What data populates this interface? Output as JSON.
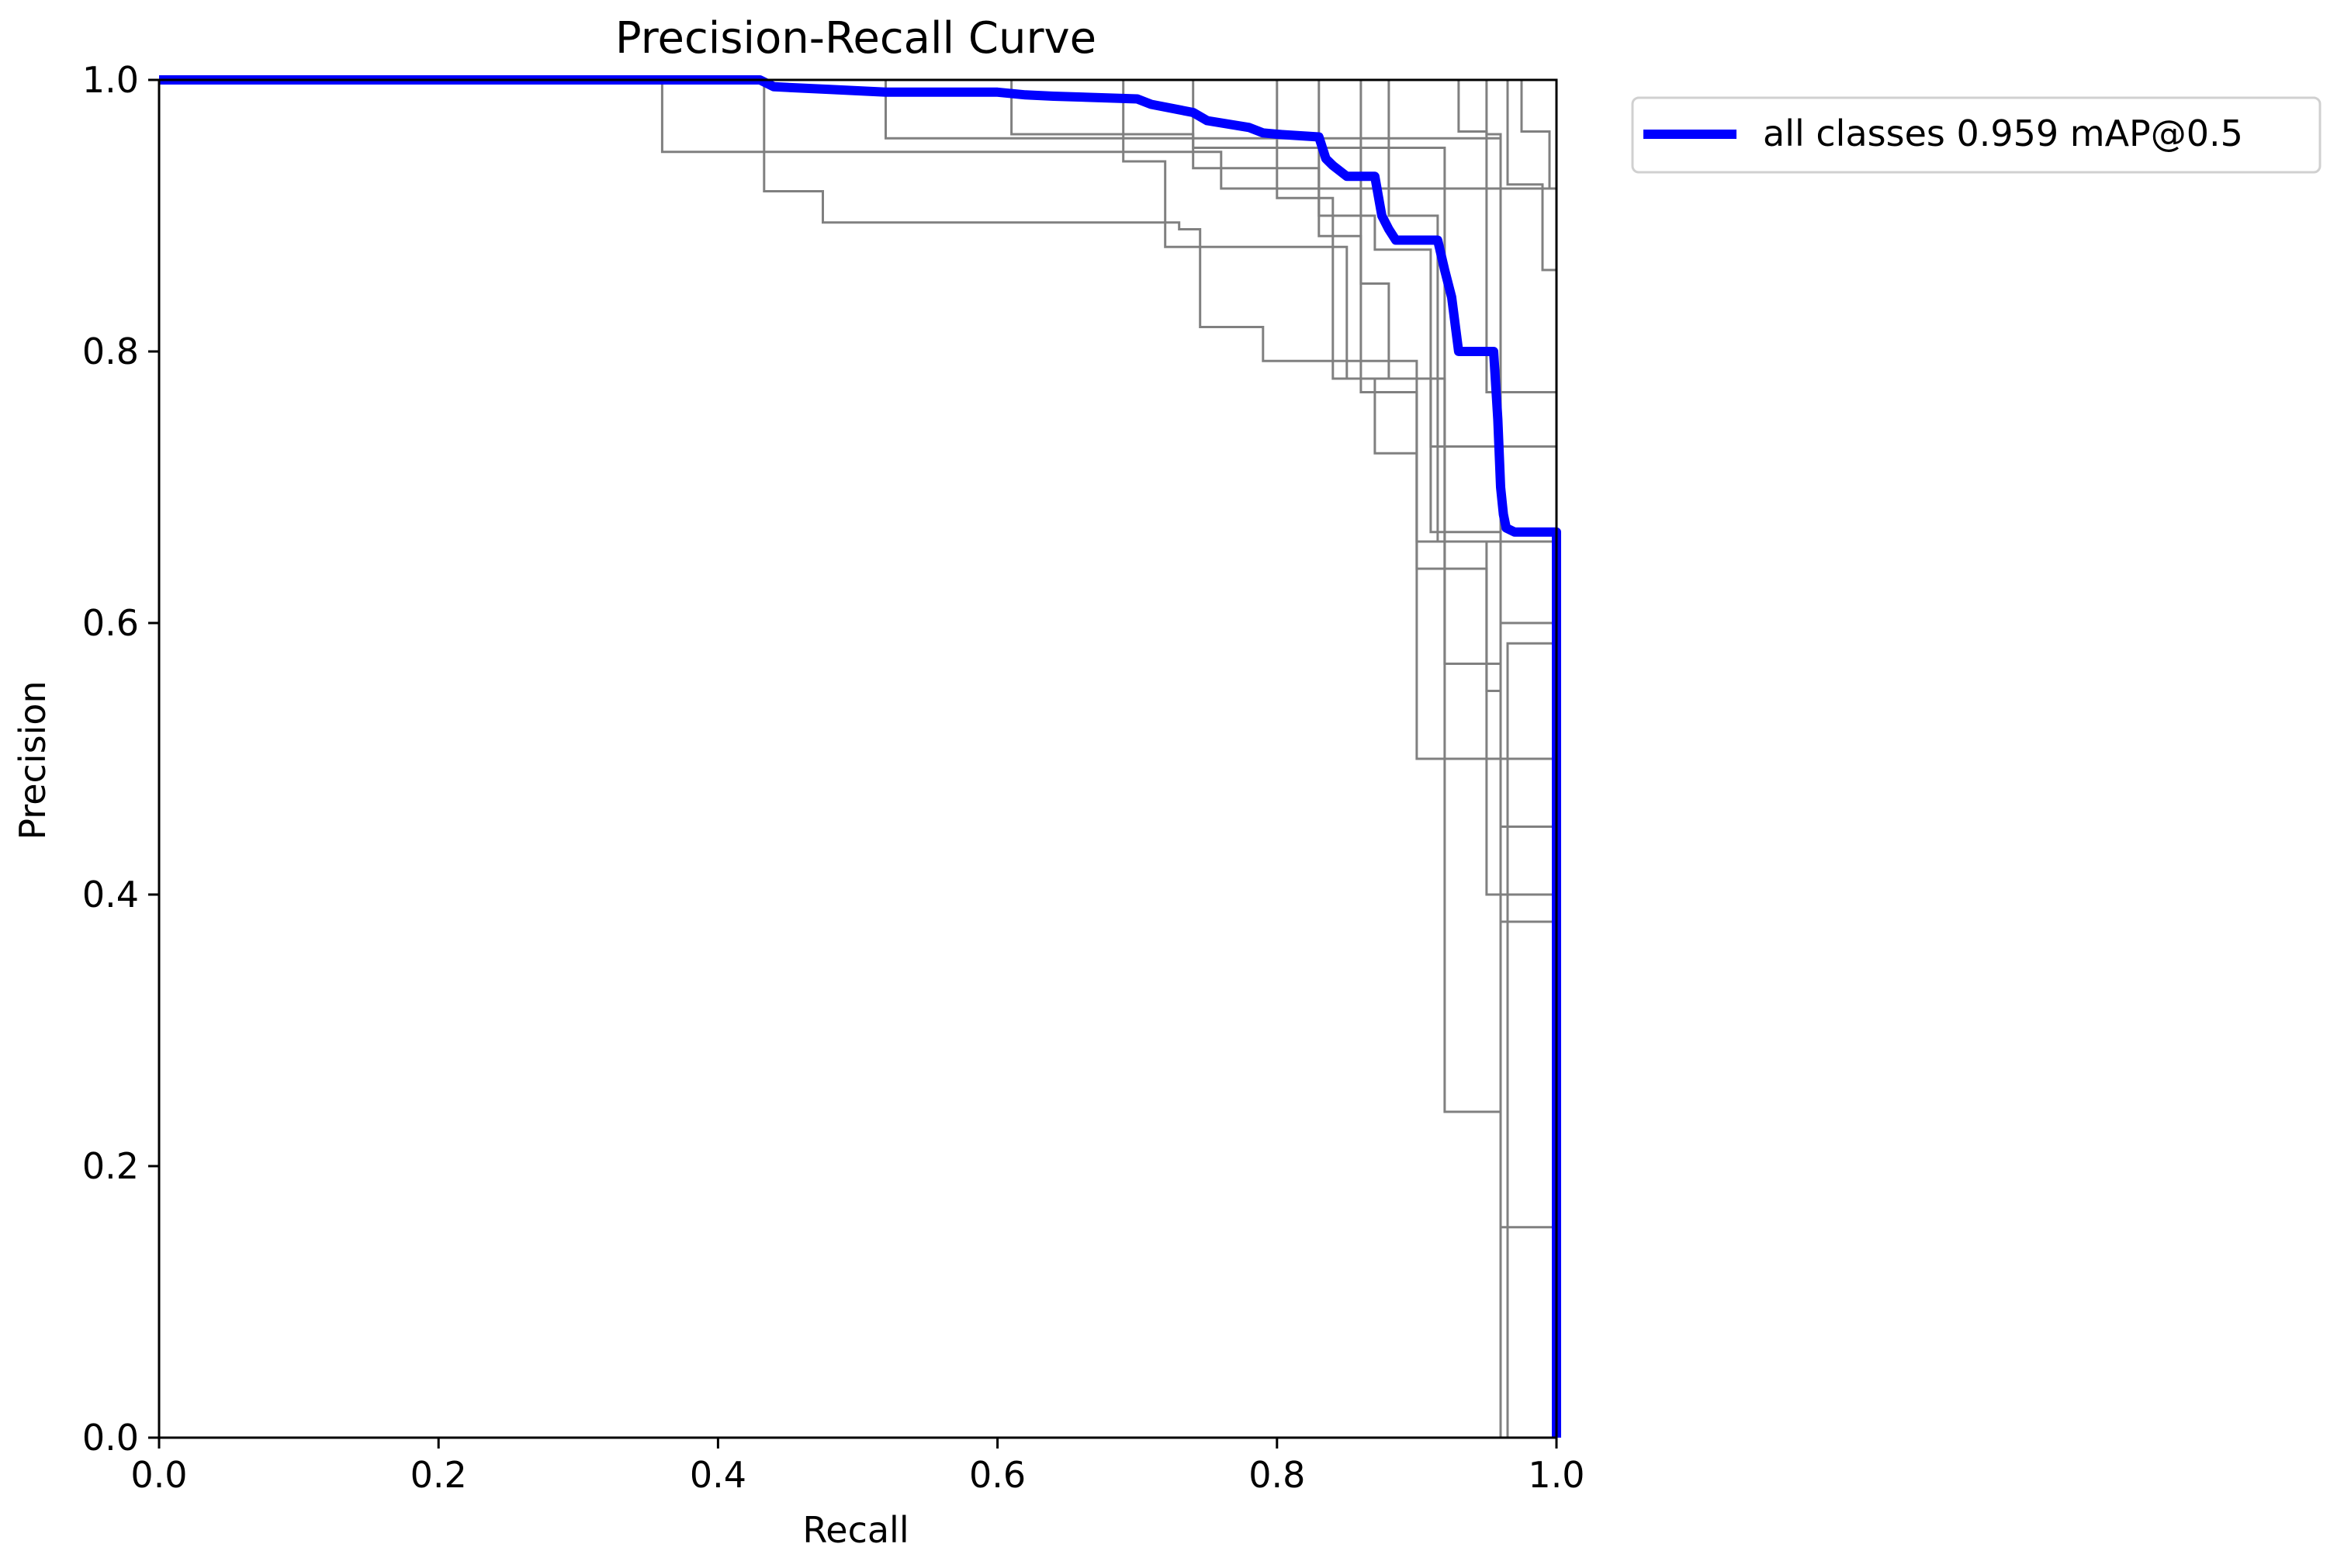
{
  "chart_data": {
    "type": "line",
    "title": "Precision-Recall Curve",
    "xlabel": "Recall",
    "ylabel": "Precision",
    "xlim": [
      0,
      1
    ],
    "ylim": [
      0,
      1
    ],
    "xticks": [
      "0.0",
      "0.2",
      "0.4",
      "0.6",
      "0.8",
      "1.0"
    ],
    "yticks": [
      "0.0",
      "0.2",
      "0.4",
      "0.6",
      "0.8",
      "1.0"
    ],
    "grid": false,
    "legend_position": "outside-top-right",
    "series": [
      {
        "name": "all classes 0.959 mAP@0.5",
        "color": "#0000ff",
        "x": [
          0,
          0.43,
          0.44,
          0.48,
          0.52,
          0.6,
          0.62,
          0.64,
          0.7,
          0.71,
          0.74,
          0.75,
          0.78,
          0.79,
          0.8,
          0.83,
          0.835,
          0.84,
          0.85,
          0.87,
          0.875,
          0.88,
          0.885,
          0.915,
          0.92,
          0.925,
          0.93,
          0.955,
          0.958,
          0.96,
          0.962,
          0.964,
          0.97,
          0.995,
          1.0,
          1.0
        ],
        "y": [
          1.0,
          1.0,
          0.995,
          0.993,
          0.991,
          0.991,
          0.989,
          0.988,
          0.986,
          0.982,
          0.976,
          0.97,
          0.965,
          0.961,
          0.96,
          0.958,
          0.942,
          0.937,
          0.929,
          0.929,
          0.9,
          0.89,
          0.882,
          0.882,
          0.86,
          0.84,
          0.8,
          0.8,
          0.75,
          0.7,
          0.68,
          0.67,
          0.667,
          0.667,
          0.667,
          0.0
        ]
      }
    ],
    "class_curves": [
      {
        "color": "#808080",
        "x": [
          0,
          0.36,
          0.36,
          0.5,
          0.5,
          0.76,
          0.76,
          1.0
        ],
        "y": [
          1.0,
          1.0,
          0.947,
          0.947,
          0.947,
          0.947,
          0.92,
          0.92
        ]
      },
      {
        "color": "#808080",
        "x": [
          0,
          0.433,
          0.433,
          0.475,
          0.475,
          0.73,
          0.73,
          0.745,
          0.745,
          0.79,
          0.79,
          0.9,
          0.9,
          1.0
        ],
        "y": [
          1.0,
          1.0,
          0.918,
          0.918,
          0.895,
          0.895,
          0.89,
          0.89,
          0.818,
          0.818,
          0.793,
          0.793,
          0.5,
          0.5
        ]
      },
      {
        "color": "#808080",
        "x": [
          0,
          0.52,
          0.52,
          0.96,
          0.96,
          1.0
        ],
        "y": [
          1.0,
          1.0,
          0.957,
          0.957,
          0.5,
          0.5
        ]
      },
      {
        "color": "#808080",
        "x": [
          0,
          0.61,
          0.61,
          0.74,
          0.74,
          0.92,
          0.92,
          0.96,
          0.96,
          1.0
        ],
        "y": [
          1.0,
          1.0,
          0.96,
          0.96,
          0.95,
          0.95,
          0.24,
          0.24,
          0.155,
          0.155
        ]
      },
      {
        "color": "#808080",
        "x": [
          0,
          0.69,
          0.69,
          0.72,
          0.72,
          0.85,
          0.85,
          0.91,
          0.91,
          1.0
        ],
        "y": [
          1.0,
          1.0,
          0.94,
          0.94,
          0.877,
          0.877,
          0.78,
          0.78,
          0.73,
          0.73
        ]
      },
      {
        "color": "#808080",
        "x": [
          0,
          0.74,
          0.74,
          0.83,
          0.83,
          0.87,
          0.87,
          0.91,
          0.91,
          0.96,
          0.96,
          1.0
        ],
        "y": [
          1.0,
          1.0,
          0.935,
          0.935,
          0.9,
          0.9,
          0.875,
          0.875,
          0.667,
          0.667,
          0.6,
          0.6
        ]
      },
      {
        "color": "#808080",
        "x": [
          0,
          0.8,
          0.8,
          0.84,
          0.84,
          0.87,
          0.87,
          0.9,
          0.9,
          1.0
        ],
        "y": [
          1.0,
          1.0,
          0.913,
          0.913,
          0.78,
          0.78,
          0.725,
          0.725,
          0.66,
          0.66
        ]
      },
      {
        "color": "#808080",
        "x": [
          0,
          0.83,
          0.83,
          0.86,
          0.86,
          0.9,
          0.9,
          0.95,
          0.95,
          1.0
        ],
        "y": [
          1.0,
          1.0,
          0.885,
          0.885,
          0.77,
          0.77,
          0.64,
          0.64,
          0.4,
          0.4
        ]
      },
      {
        "color": "#808080",
        "x": [
          0,
          0.86,
          0.86,
          0.88,
          0.88,
          0.92,
          0.92,
          0.96,
          0.96,
          1.0
        ],
        "y": [
          1.0,
          1.0,
          0.85,
          0.85,
          0.78,
          0.78,
          0.57,
          0.57,
          0.38,
          0.38
        ]
      },
      {
        "color": "#808080",
        "x": [
          0,
          0.88,
          0.88,
          0.915,
          0.915,
          0.95,
          0.95,
          0.96,
          0.96,
          1.0
        ],
        "y": [
          1.0,
          1.0,
          0.9,
          0.9,
          0.66,
          0.66,
          0.55,
          0.55,
          0.45,
          0.45
        ]
      },
      {
        "color": "#808080",
        "x": [
          0,
          0.95,
          0.95,
          0.96,
          0.96,
          0.965,
          0.965,
          1.0
        ],
        "y": [
          1.0,
          1.0,
          0.96,
          0.96,
          0.0,
          0.0,
          0.585,
          0.585
        ]
      },
      {
        "color": "#808080",
        "x": [
          0,
          0.975,
          0.975,
          0.995,
          0.995,
          1.0
        ],
        "y": [
          1.0,
          1.0,
          0.962,
          0.962,
          0.92,
          0.92
        ]
      },
      {
        "color": "#808080",
        "x": [
          0,
          0.965,
          0.965,
          0.99,
          0.99,
          1.0
        ],
        "y": [
          1.0,
          1.0,
          0.923,
          0.923,
          0.86,
          0.86
        ]
      },
      {
        "color": "#808080",
        "x": [
          0,
          0.93,
          0.93,
          0.95,
          0.95,
          1.0
        ],
        "y": [
          1.0,
          1.0,
          0.962,
          0.962,
          0.77,
          0.77
        ]
      }
    ]
  }
}
